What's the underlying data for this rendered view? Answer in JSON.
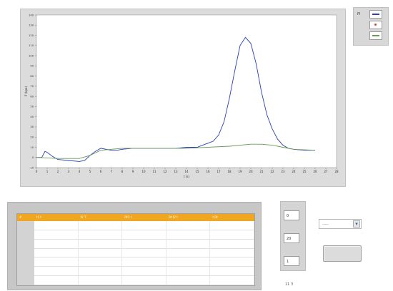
{
  "chart_data": {
    "type": "line",
    "xlabel": "t (s)",
    "ylabel": "P (kpa)",
    "xlim": [
      0,
      28
    ],
    "ylim": [
      -10,
      140
    ],
    "x_ticks": [
      "0",
      "1",
      "2",
      "3",
      "4",
      "5",
      "6",
      "7",
      "8",
      "9",
      "10",
      "11",
      "12",
      "13",
      "14",
      "15",
      "16",
      "17",
      "18",
      "19",
      "20",
      "21",
      "22",
      "23",
      "24",
      "25",
      "26",
      "27",
      "28"
    ],
    "y_ticks": [
      "-10",
      "0",
      "10",
      "20",
      "30",
      "40",
      "50",
      "60",
      "70",
      "80",
      "90",
      "100",
      "110",
      "120",
      "130",
      "140"
    ],
    "grid": false,
    "series": [
      {
        "color": "#2b3fb4",
        "x": [
          0,
          0.5,
          0.8,
          1.0,
          1.5,
          2,
          3,
          4,
          4.5,
          5,
          5.5,
          6,
          6.5,
          7,
          7.5,
          8,
          9,
          10,
          13,
          14,
          15,
          15.5,
          16,
          16.5,
          17,
          17.5,
          18,
          18.5,
          19,
          19.5,
          20,
          20.5,
          21,
          21.5,
          22,
          22.5,
          23,
          23.5,
          24,
          25,
          26
        ],
        "y": [
          0,
          0,
          6,
          5,
          1,
          -2,
          -3,
          -4,
          -3,
          2,
          6,
          9,
          8,
          7,
          7,
          8,
          9,
          9,
          9,
          10,
          10,
          12,
          14,
          16,
          22,
          35,
          58,
          85,
          110,
          118,
          112,
          92,
          64,
          42,
          28,
          18,
          12,
          9,
          8,
          7,
          7
        ]
      },
      {
        "color": "#6a9a58",
        "x": [
          0,
          2,
          4,
          5,
          6,
          8,
          10,
          14,
          18,
          20,
          21,
          22,
          23,
          24,
          26
        ],
        "y": [
          0,
          -1,
          -1,
          2,
          7,
          9,
          9,
          9,
          11,
          13,
          13,
          12,
          10,
          8,
          7
        ]
      }
    ]
  },
  "legend": {
    "label": "Pl",
    "items": [
      {
        "color": "#2b3fb4",
        "icon": "line-blue"
      },
      {
        "color": "#d9453a",
        "icon": "point-red"
      },
      {
        "color": "#6a9a58",
        "icon": "line-green"
      }
    ]
  },
  "table": {
    "columns": [
      "t1 t",
      "t2 T",
      "Dt1 t",
      "Dt t2 t",
      "t Dt"
    ],
    "header_color": "#f0a61e",
    "rows": [
      [
        "",
        "",
        "",
        "",
        ""
      ],
      [
        "",
        "",
        "",
        "",
        ""
      ],
      [
        "",
        "",
        "",
        "",
        ""
      ],
      [
        "",
        "",
        "",
        "",
        ""
      ],
      [
        "",
        "",
        "",
        "",
        ""
      ],
      [
        "",
        "",
        "",
        "",
        ""
      ],
      [
        "",
        "",
        "",
        "",
        ""
      ]
    ]
  },
  "spinner": {
    "values": [
      "0",
      "20",
      "1"
    ]
  },
  "dropdown": {
    "value": "-----"
  },
  "footer_label": "11 3"
}
